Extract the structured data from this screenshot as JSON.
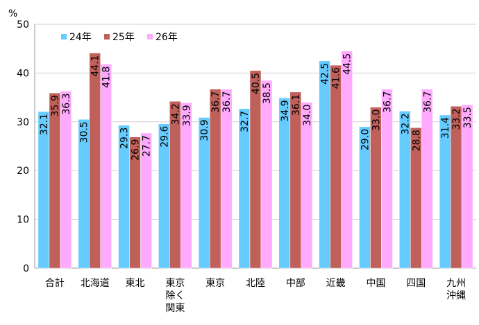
{
  "chart_data": {
    "type": "bar",
    "title": "",
    "ylabel": "%",
    "xlabel": "",
    "ylim": [
      0,
      50
    ],
    "yticks": [
      0,
      10,
      20,
      30,
      40,
      50
    ],
    "grid": true,
    "legend_position": "top-left",
    "categories": [
      [
        "合計"
      ],
      [
        "北海道"
      ],
      [
        "東北"
      ],
      [
        "東京",
        "除く",
        "関東"
      ],
      [
        "東京"
      ],
      [
        "北陸"
      ],
      [
        "中部"
      ],
      [
        "近畿"
      ],
      [
        "中国"
      ],
      [
        "四国"
      ],
      [
        "九州",
        "沖縄"
      ]
    ],
    "series": [
      {
        "name": "24年",
        "color": "#66CCFF",
        "values": [
          32.1,
          30.5,
          29.3,
          29.6,
          30.9,
          32.7,
          34.9,
          42.5,
          29.0,
          32.2,
          31.4
        ]
      },
      {
        "name": "25年",
        "color": "#C0605A",
        "values": [
          35.9,
          44.1,
          26.9,
          34.2,
          36.7,
          40.5,
          36.1,
          41.6,
          33.0,
          28.8,
          33.2
        ]
      },
      {
        "name": "26年",
        "color": "#FFAAFF",
        "values": [
          36.3,
          41.8,
          27.7,
          33.9,
          36.7,
          38.5,
          34.0,
          44.5,
          36.7,
          36.7,
          33.5
        ]
      }
    ]
  }
}
